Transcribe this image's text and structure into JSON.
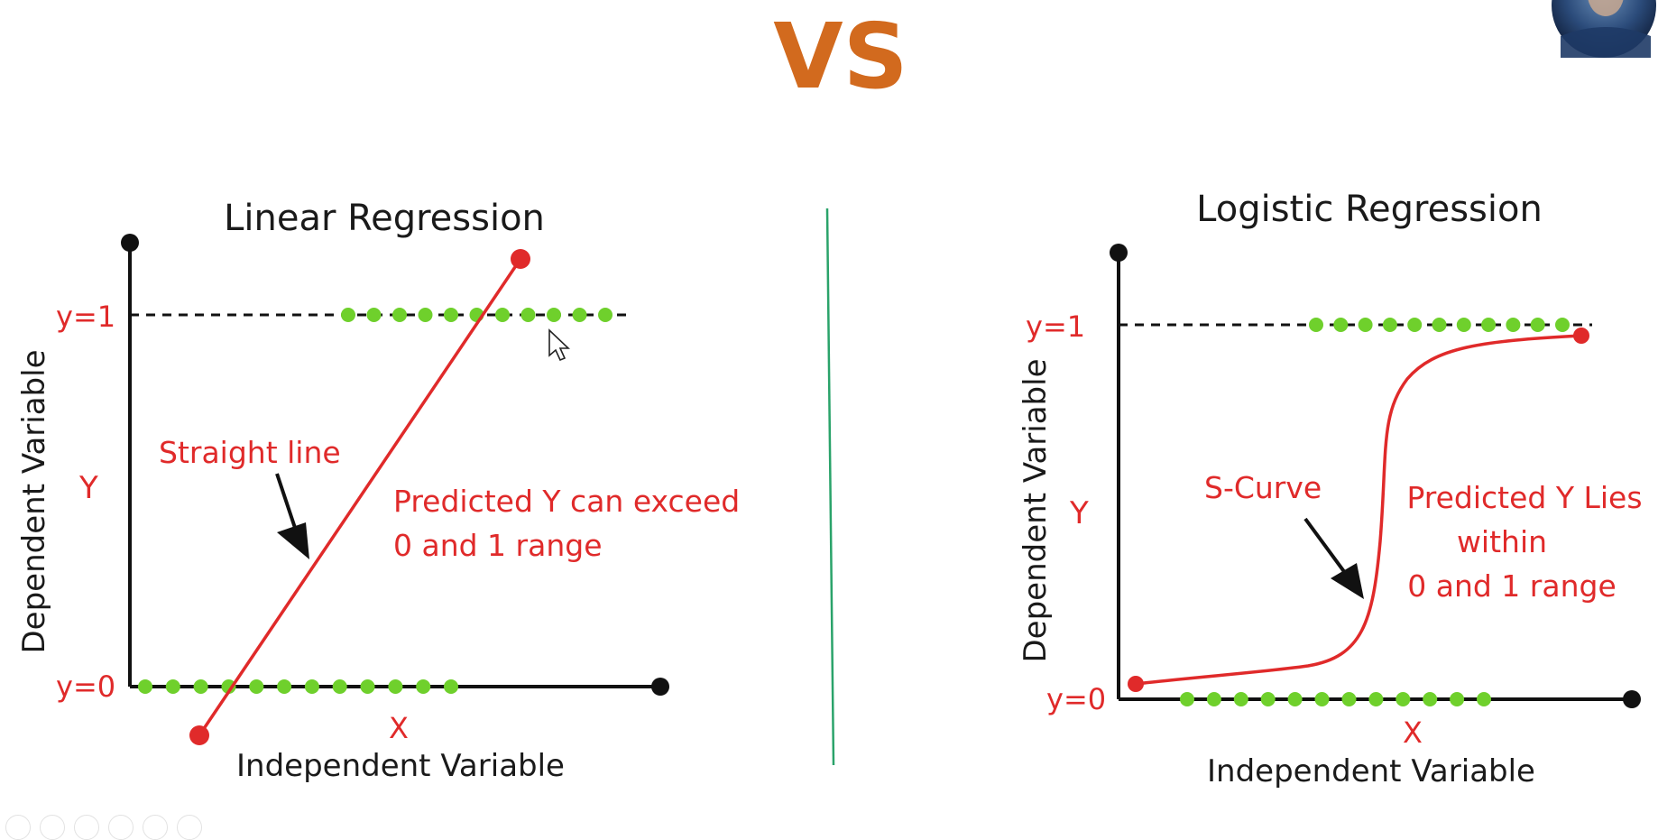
{
  "header": {
    "vs_text": "VS"
  },
  "colors": {
    "vs": "#d26a1e",
    "annotation_red": "#e02a2a",
    "point_green": "#6fd02c",
    "axis_black": "#111111",
    "divider_green": "#2aa36a"
  },
  "left_panel": {
    "title": "Linear Regression",
    "y_axis_label": "Dependent Variable",
    "y_letter": "Y",
    "x_letter": "X",
    "x_axis_label": "Independent Variable",
    "y1_label": "y=1",
    "y0_label": "y=0",
    "curve_label": "Straight line",
    "note_line1": "Predicted Y can exceed",
    "note_line2": "0 and 1 range",
    "curve_type": "straight line",
    "top_points_count": 11,
    "bottom_points_count": 12
  },
  "right_panel": {
    "title": "Logistic Regression",
    "y_axis_label": "Dependent Variable",
    "y_letter": "Y",
    "x_letter": "X",
    "x_axis_label": "Independent Variable",
    "y1_label": "y=1",
    "y0_label": "y=0",
    "curve_label": "S-Curve",
    "note_line1": "Predicted Y Lies",
    "note_line2": "within",
    "note_line3": "0 and 1 range",
    "curve_type": "sigmoid",
    "top_points_count": 11,
    "bottom_points_count": 12
  },
  "icons": {
    "avatar": "presenter-avatar",
    "cursor": "mouse-pointer-icon"
  }
}
